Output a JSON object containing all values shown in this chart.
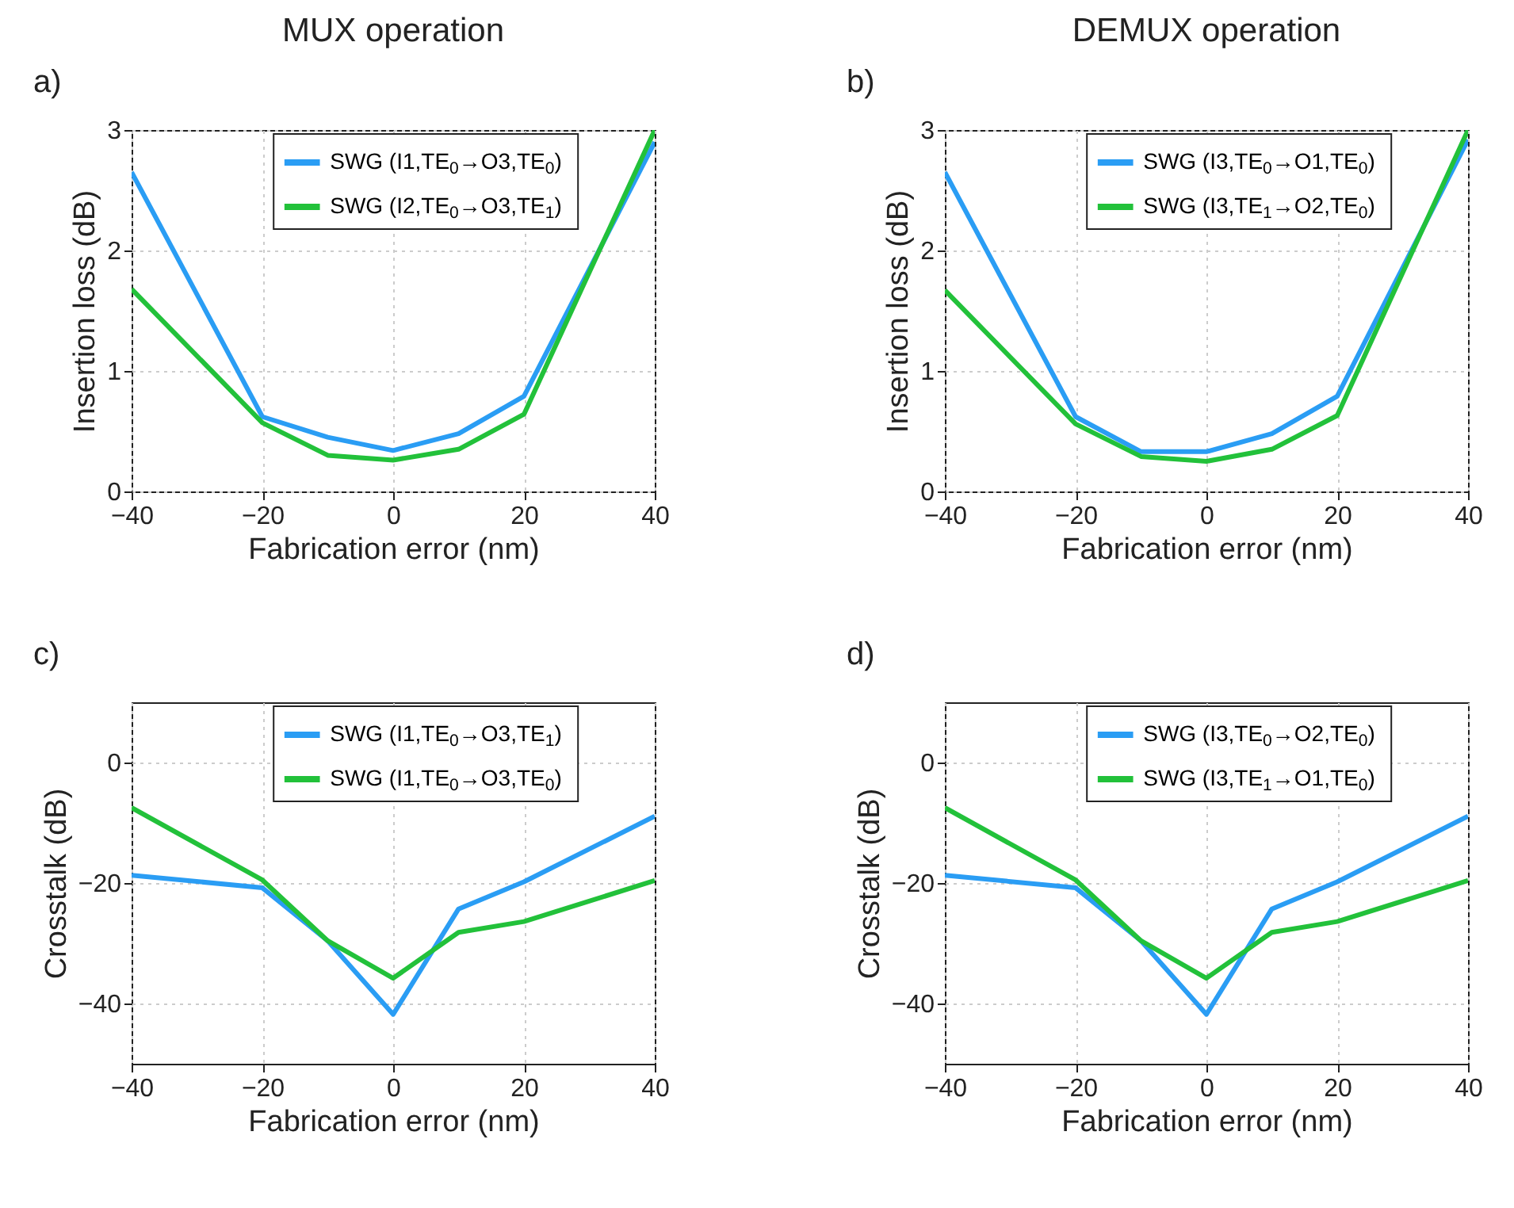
{
  "chart_data": [
    {
      "type": "line",
      "title": "MUX operation",
      "annotations": [
        "a)"
      ],
      "xlabel": "Fabrication error (nm)",
      "ylabel": "Insertion loss (dB)",
      "x": [
        -40,
        -20,
        -10,
        0,
        10,
        20,
        40
      ],
      "xlim": [
        -40,
        40
      ],
      "xticks": [
        -40,
        -20,
        0,
        20,
        40
      ],
      "ylim": [
        0,
        3
      ],
      "yticks": [
        0,
        1,
        2,
        3
      ],
      "grid": true,
      "legend": "top",
      "marker": "none",
      "line_style": "solid",
      "series": [
        {
          "name": "SWG (I1,TE$_{0}$→O3,TE$_{0}$)",
          "color": "#2a9df4",
          "values": [
            2.65,
            0.62,
            0.45,
            0.34,
            0.48,
            0.79,
            2.9
          ]
        },
        {
          "name": "SWG (I2,TE$_{0}$→O3,TE$_{1}$)",
          "color": "#22c13a",
          "values": [
            1.68,
            0.57,
            0.3,
            0.26,
            0.35,
            0.64,
            3.0
          ]
        }
      ]
    },
    {
      "type": "line",
      "title": "DEMUX operation",
      "annotations": [
        "b)"
      ],
      "xlabel": "Fabrication error (nm)",
      "ylabel": "Insertion loss (dB)",
      "x": [
        -40,
        -20,
        -10,
        0,
        10,
        20,
        40
      ],
      "xlim": [
        -40,
        40
      ],
      "xticks": [
        -40,
        -20,
        0,
        20,
        40
      ],
      "ylim": [
        0,
        3
      ],
      "yticks": [
        0,
        1,
        2,
        3
      ],
      "grid": true,
      "legend": "top",
      "marker": "none",
      "line_style": "solid",
      "series": [
        {
          "name": "SWG (I3,TE$_{0}$→O1,TE$_{0}$)",
          "color": "#2a9df4",
          "values": [
            2.65,
            0.62,
            0.33,
            0.33,
            0.48,
            0.79,
            2.92
          ]
        },
        {
          "name": "SWG (I3,TE$_{1}$→O2,TE$_{0}$)",
          "color": "#22c13a",
          "values": [
            1.67,
            0.56,
            0.29,
            0.25,
            0.35,
            0.63,
            3.0
          ]
        }
      ]
    },
    {
      "type": "line",
      "annotations": [
        "c)"
      ],
      "xlabel": "Fabrication error (nm)",
      "ylabel": "Crosstalk (dB)",
      "x": [
        -40,
        -20,
        -10,
        0,
        10,
        20,
        40
      ],
      "xlim": [
        -40,
        40
      ],
      "xticks": [
        -40,
        -20,
        0,
        20,
        40
      ],
      "ylim": [
        -50,
        10
      ],
      "yticks": [
        -40,
        -20,
        0
      ],
      "grid": true,
      "legend": "top",
      "marker": "none",
      "line_style": "solid",
      "series": [
        {
          "name": "SWG (I1,TE$_{0}$→O3,TE$_{1}$)",
          "color": "#2a9df4",
          "values": [
            -18.7,
            -20.8,
            -29.6,
            -41.8,
            -24.3,
            -19.8,
            -8.9
          ]
        },
        {
          "name": "SWG (I1,TE$_{0}$→O3,TE$_{0}$)",
          "color": "#22c13a",
          "values": [
            -7.5,
            -19.5,
            -29.6,
            -35.8,
            -28.2,
            -26.4,
            -19.6
          ]
        }
      ]
    },
    {
      "type": "line",
      "annotations": [
        "d)"
      ],
      "xlabel": "Fabrication error (nm)",
      "ylabel": "Crosstalk (dB)",
      "x": [
        -40,
        -20,
        -10,
        0,
        10,
        20,
        40
      ],
      "xlim": [
        -40,
        40
      ],
      "xticks": [
        -40,
        -20,
        0,
        20,
        40
      ],
      "ylim": [
        -50,
        10
      ],
      "yticks": [
        -40,
        -20,
        0
      ],
      "grid": true,
      "legend": "top",
      "marker": "none",
      "line_style": "solid",
      "series": [
        {
          "name": "SWG (I3,TE$_{0}$→O2,TE$_{0}$)",
          "color": "#2a9df4",
          "values": [
            -18.7,
            -20.8,
            -29.6,
            -41.8,
            -24.3,
            -19.8,
            -8.9
          ]
        },
        {
          "name": "SWG (I3,TE$_{1}$→O1,TE$_{0}$)",
          "color": "#22c13a",
          "values": [
            -7.5,
            -19.5,
            -29.6,
            -35.8,
            -28.2,
            -26.4,
            -19.6
          ]
        }
      ]
    }
  ]
}
